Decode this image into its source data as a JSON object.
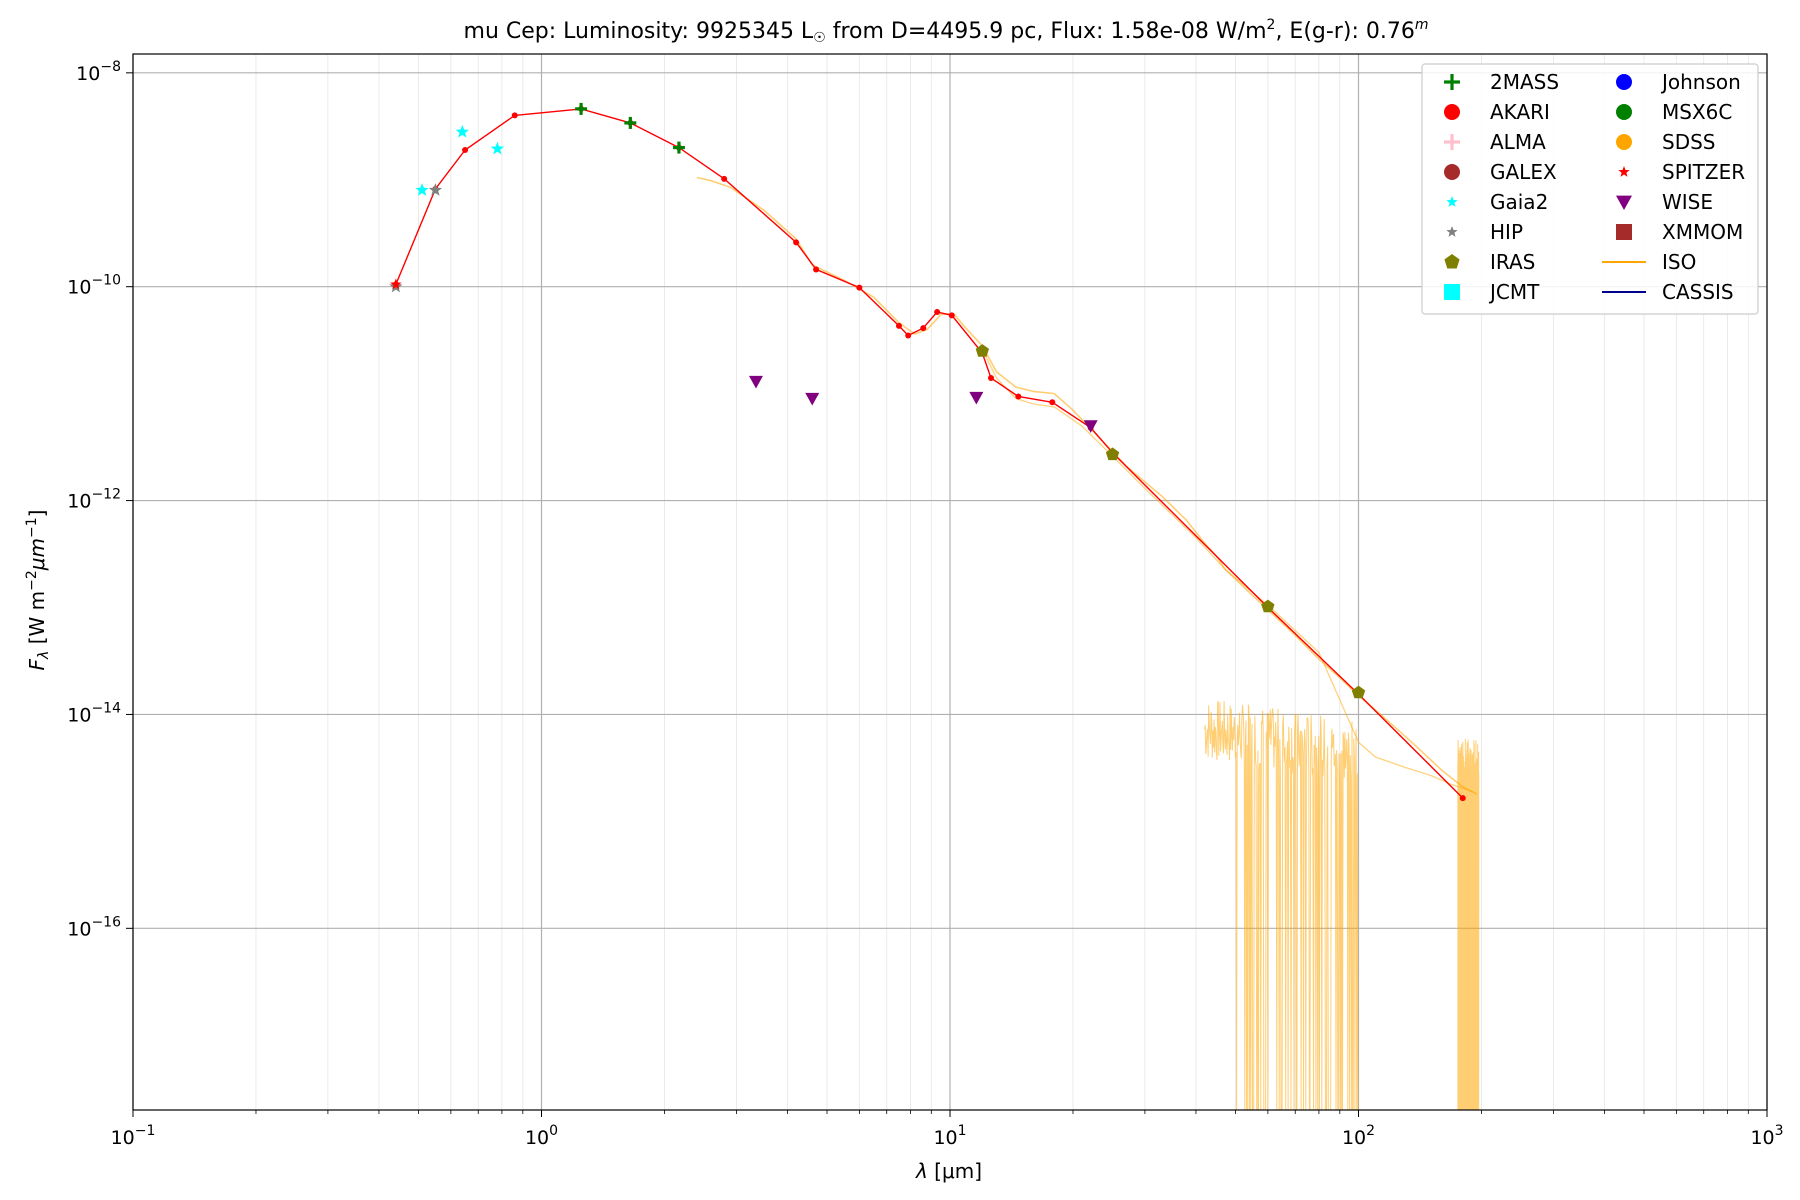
{
  "chart_data": {
    "type": "scatter",
    "title_parts": {
      "object": "mu Cep:",
      "lum_prefix": "Luminosity: 9925345 L",
      "sun_symbol": "☉",
      "distance": " from D=4495.9 pc, Flux: 1.58e-08 W/m",
      "flux_exp": "2",
      "ext": ", E(g-r): 0.76",
      "ext_exp": "m"
    },
    "xlabel": {
      "symbol": "λ",
      "unit": " [μm]"
    },
    "ylabel": {
      "symbol": "F",
      "sub": "λ",
      "unit_prefix": " [W m",
      "exp1": "−2",
      "mid": "μm",
      "exp2": "−1",
      "unit_suffix": "]"
    },
    "x_scale": "log",
    "y_scale": "log",
    "xlim": [
      0.1,
      1000
    ],
    "ylim": [
      2e-18,
      1.5e-08
    ],
    "x_ticks": [
      {
        "value": 0.1,
        "base": "10",
        "exp": "−1"
      },
      {
        "value": 1,
        "base": "10",
        "exp": "0"
      },
      {
        "value": 10,
        "base": "10",
        "exp": "1"
      },
      {
        "value": 100,
        "base": "10",
        "exp": "2"
      },
      {
        "value": 1000,
        "base": "10",
        "exp": "3"
      }
    ],
    "y_ticks": [
      {
        "value": 1e-16,
        "base": "10",
        "exp": "−16"
      },
      {
        "value": 1e-14,
        "base": "10",
        "exp": "−14"
      },
      {
        "value": 1e-12,
        "base": "10",
        "exp": "−12"
      },
      {
        "value": 1e-10,
        "base": "10",
        "exp": "−10"
      },
      {
        "value": 1e-08,
        "base": "10",
        "exp": "−8"
      }
    ],
    "grid": true,
    "legend_position": "top-right",
    "legend": [
      {
        "label": "2MASS",
        "marker": "plus",
        "color": "#008000"
      },
      {
        "label": "AKARI",
        "marker": "circle",
        "color": "#ff0000"
      },
      {
        "label": "ALMA",
        "marker": "plus",
        "color": "#ffc0cb"
      },
      {
        "label": "GALEX",
        "marker": "circle",
        "color": "#a52a2a"
      },
      {
        "label": "Gaia2",
        "marker": "star",
        "color": "#00ffff"
      },
      {
        "label": "HIP",
        "marker": "star",
        "color": "#808080"
      },
      {
        "label": "IRAS",
        "marker": "pentagon",
        "color": "#808000"
      },
      {
        "label": "JCMT",
        "marker": "square",
        "color": "#00ffff"
      },
      {
        "label": "Johnson",
        "marker": "circle",
        "color": "#0000ff"
      },
      {
        "label": "MSX6C",
        "marker": "circle",
        "color": "#008000"
      },
      {
        "label": "SDSS",
        "marker": "circle",
        "color": "#ffa500"
      },
      {
        "label": "SPITZER",
        "marker": "star",
        "color": "#ff0000"
      },
      {
        "label": "WISE",
        "marker": "triangle-down",
        "color": "#800080"
      },
      {
        "label": "XMMOM",
        "marker": "square",
        "color": "#a52a2a"
      },
      {
        "label": "ISO",
        "marker": "line",
        "color": "#ffa500"
      },
      {
        "label": "CASSIS",
        "marker": "line",
        "color": "#00008b"
      }
    ],
    "model_color": "#ff0000",
    "model": [
      [
        0.44,
        1.05e-10
      ],
      [
        0.55,
        8.2e-10
      ],
      [
        0.65,
        1.9e-09
      ],
      [
        0.86,
        4e-09
      ],
      [
        1.25,
        4.6e-09
      ],
      [
        1.65,
        3.4e-09
      ],
      [
        2.17,
        2e-09
      ],
      [
        2.8,
        1.02e-09
      ],
      [
        4.2,
        2.6e-10
      ],
      [
        4.7,
        1.45e-10
      ],
      [
        6.0,
        9.8e-11
      ],
      [
        7.5,
        4.3e-11
      ],
      [
        7.9,
        3.5e-11
      ],
      [
        8.6,
        4.1e-11
      ],
      [
        9.3,
        5.8e-11
      ],
      [
        10.1,
        5.4e-11
      ],
      [
        12.0,
        2.4e-11
      ],
      [
        12.6,
        1.4e-11
      ],
      [
        14.7,
        9.4e-12
      ],
      [
        17.8,
        8.3e-12
      ],
      [
        22.1,
        4.8e-12
      ],
      [
        25.0,
        2.8e-12
      ],
      [
        60.0,
        1e-13
      ],
      [
        100.0,
        1.55e-14
      ],
      [
        180.0,
        1.65e-15
      ]
    ],
    "photometry": [
      {
        "system": "2MASS",
        "points": [
          [
            1.25,
            4.6e-09
          ],
          [
            1.65,
            3.4e-09
          ],
          [
            2.17,
            2e-09
          ]
        ]
      },
      {
        "system": "Gaia2",
        "points": [
          [
            0.51,
            8e-10
          ],
          [
            0.64,
            2.8e-09
          ],
          [
            0.78,
            1.95e-09
          ]
        ]
      },
      {
        "system": "HIP",
        "points": [
          [
            0.44,
            1e-10
          ],
          [
            0.55,
            8e-10
          ]
        ]
      },
      {
        "system": "SPITZER",
        "points": [
          [
            0.44,
            1.05e-10
          ]
        ]
      },
      {
        "system": "IRAS",
        "points": [
          [
            12.0,
            2.5e-11
          ],
          [
            25.0,
            2.7e-12
          ],
          [
            60.0,
            1.02e-13
          ],
          [
            100.0,
            1.6e-14
          ]
        ]
      },
      {
        "system": "WISE",
        "points": [
          [
            3.35,
            1.3e-11
          ],
          [
            4.6,
            9e-12
          ],
          [
            11.6,
            9.2e-12
          ],
          [
            22.1,
            5e-12
          ]
        ]
      }
    ],
    "iso_spectrum_main": [
      [
        2.4,
        1.05e-09
      ],
      [
        2.6,
        9.8e-10
      ],
      [
        2.9,
        8.5e-10
      ],
      [
        3.5,
        5.2e-10
      ],
      [
        4.2,
        2.8e-10
      ],
      [
        4.6,
        1.6e-10
      ],
      [
        5.5,
        1.15e-10
      ],
      [
        6.5,
        8e-11
      ],
      [
        7.5,
        4.6e-11
      ],
      [
        8.2,
        3.6e-11
      ],
      [
        8.8,
        4e-11
      ],
      [
        9.5,
        5.5e-11
      ],
      [
        10.2,
        5.6e-11
      ],
      [
        11.0,
        4e-11
      ],
      [
        12.0,
        2.8e-11
      ],
      [
        13.0,
        1.6e-11
      ],
      [
        14.5,
        1.15e-11
      ],
      [
        16.0,
        1.05e-11
      ],
      [
        18.0,
        1e-11
      ],
      [
        20.0,
        7e-12
      ],
      [
        23.0,
        4e-12
      ],
      [
        27.0,
        2.1e-12
      ],
      [
        33.0,
        1.1e-12
      ],
      [
        38.0,
        6.5e-13
      ],
      [
        42.0,
        4e-13
      ],
      [
        45.0,
        3e-13
      ],
      [
        47.0,
        2.3e-13
      ],
      [
        55.0,
        1.3e-13
      ],
      [
        62.0,
        8.5e-14
      ],
      [
        70.0,
        5.5e-14
      ],
      [
        80.0,
        3.3e-14
      ],
      [
        90.0,
        2.2e-14
      ],
      [
        100.0,
        1.5e-14
      ],
      [
        115.0,
        9.5e-15
      ],
      [
        135.0,
        5.5e-15
      ],
      [
        160.0,
        3e-15
      ],
      [
        180.0,
        2.1e-15
      ],
      [
        195.0,
        1.8e-15
      ]
    ],
    "iso_spectrum_lower": [
      [
        12.0,
        2.6e-11
      ],
      [
        13.0,
        1.4e-11
      ],
      [
        14.5,
        9e-12
      ],
      [
        16.0,
        8e-12
      ],
      [
        18.0,
        7.5e-12
      ],
      [
        21.0,
        5e-12
      ],
      [
        25.0,
        2.6e-12
      ],
      [
        30.0,
        1.3e-12
      ],
      [
        40.0,
        4.5e-13
      ],
      [
        47.0,
        2.3e-13
      ],
      [
        60.0,
        1.05e-13
      ],
      [
        80.0,
        3.8e-14
      ],
      [
        100.0,
        5.5e-15
      ],
      [
        110.0,
        4e-15
      ],
      [
        130.0,
        3.2e-15
      ],
      [
        150.0,
        2.7e-15
      ],
      [
        170.0,
        2.2e-15
      ],
      [
        190.0,
        1.9e-15
      ]
    ],
    "iso_noisy_ranges": [
      [
        42.0,
        100.0
      ],
      [
        175.0,
        197.0
      ]
    ]
  }
}
